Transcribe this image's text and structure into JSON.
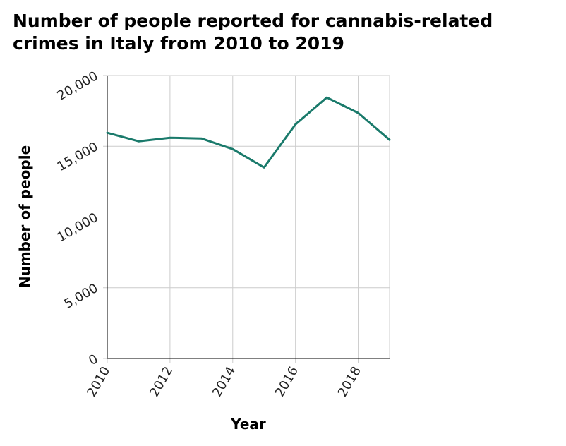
{
  "chart_data": {
    "type": "line",
    "title": "Number of people reported for cannabis-related crimes in Italy from 2010 to 2019",
    "xlabel": "Year",
    "ylabel": "Number of people",
    "x": [
      2010,
      2011,
      2012,
      2013,
      2014,
      2015,
      2016,
      2017,
      2018,
      2019
    ],
    "series": [
      {
        "values": [
          15950,
          15350,
          15600,
          15550,
          14800,
          13500,
          16550,
          18450,
          17350,
          15450
        ]
      }
    ],
    "xlim": [
      2010,
      2019
    ],
    "ylim": [
      0,
      20000
    ],
    "x_ticks": [
      2010,
      2012,
      2014,
      2016,
      2018
    ],
    "x_tick_labels": [
      "2010",
      "2012",
      "2014",
      "2016",
      "2018"
    ],
    "y_ticks": [
      0,
      5000,
      10000,
      15000,
      20000
    ],
    "y_tick_labels": [
      "0",
      "5,000",
      "10,000",
      "15,000",
      "20,000"
    ],
    "grid": true,
    "line_color": "#1a7a6b",
    "grid_color": "#cccccc"
  }
}
